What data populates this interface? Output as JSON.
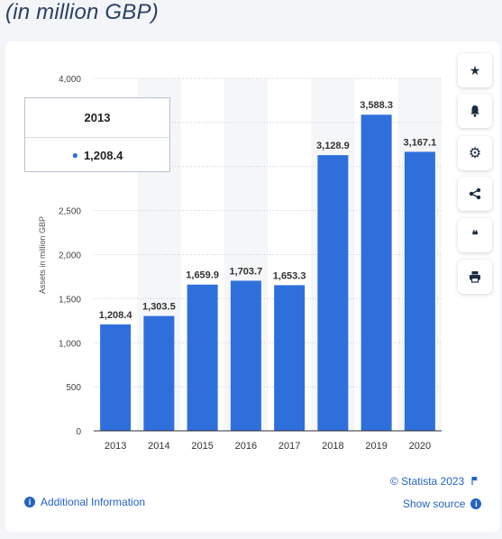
{
  "page_title": "(in million GBP)",
  "tooltip": {
    "year": "2013",
    "value": "1,208.4"
  },
  "side_buttons": [
    {
      "icon": "star-icon",
      "glyph": "★"
    },
    {
      "icon": "bell-icon",
      "glyph": "🔔"
    },
    {
      "icon": "gear-icon",
      "glyph": "⚙"
    },
    {
      "icon": "share-icon",
      "glyph": "⋖"
    },
    {
      "icon": "quote-icon",
      "glyph": "❝"
    },
    {
      "icon": "print-icon",
      "glyph": "🖶"
    }
  ],
  "footer": {
    "copyright": "© Statista 2023",
    "additional_info": "Additional Information",
    "show_source": "Show source"
  },
  "colors": {
    "bar": "#2f6fdb",
    "accent": "#2463c4"
  },
  "chart_data": {
    "type": "bar",
    "categories": [
      "2013",
      "2014",
      "2015",
      "2016",
      "2017",
      "2018",
      "2019",
      "2020"
    ],
    "values": [
      1208.4,
      1303.5,
      1659.9,
      1703.7,
      1653.3,
      3128.9,
      3588.3,
      3167.1
    ],
    "value_labels": [
      "1,208.4",
      "1,303.5",
      "1,659.9",
      "1,703.7",
      "1,653.3",
      "3,128.9",
      "3,588.3",
      "3,167.1"
    ],
    "ylabel": "Assets in million GBP",
    "ylim": [
      0,
      4000
    ],
    "yticks": [
      0,
      500,
      1000,
      1500,
      2000,
      2500,
      3000,
      3500,
      4000
    ],
    "ytick_labels": [
      "0",
      "500",
      "1,000",
      "1,500",
      "2,000",
      "2,500",
      "3,000",
      "3,500",
      "4,000"
    ],
    "grid": true
  }
}
